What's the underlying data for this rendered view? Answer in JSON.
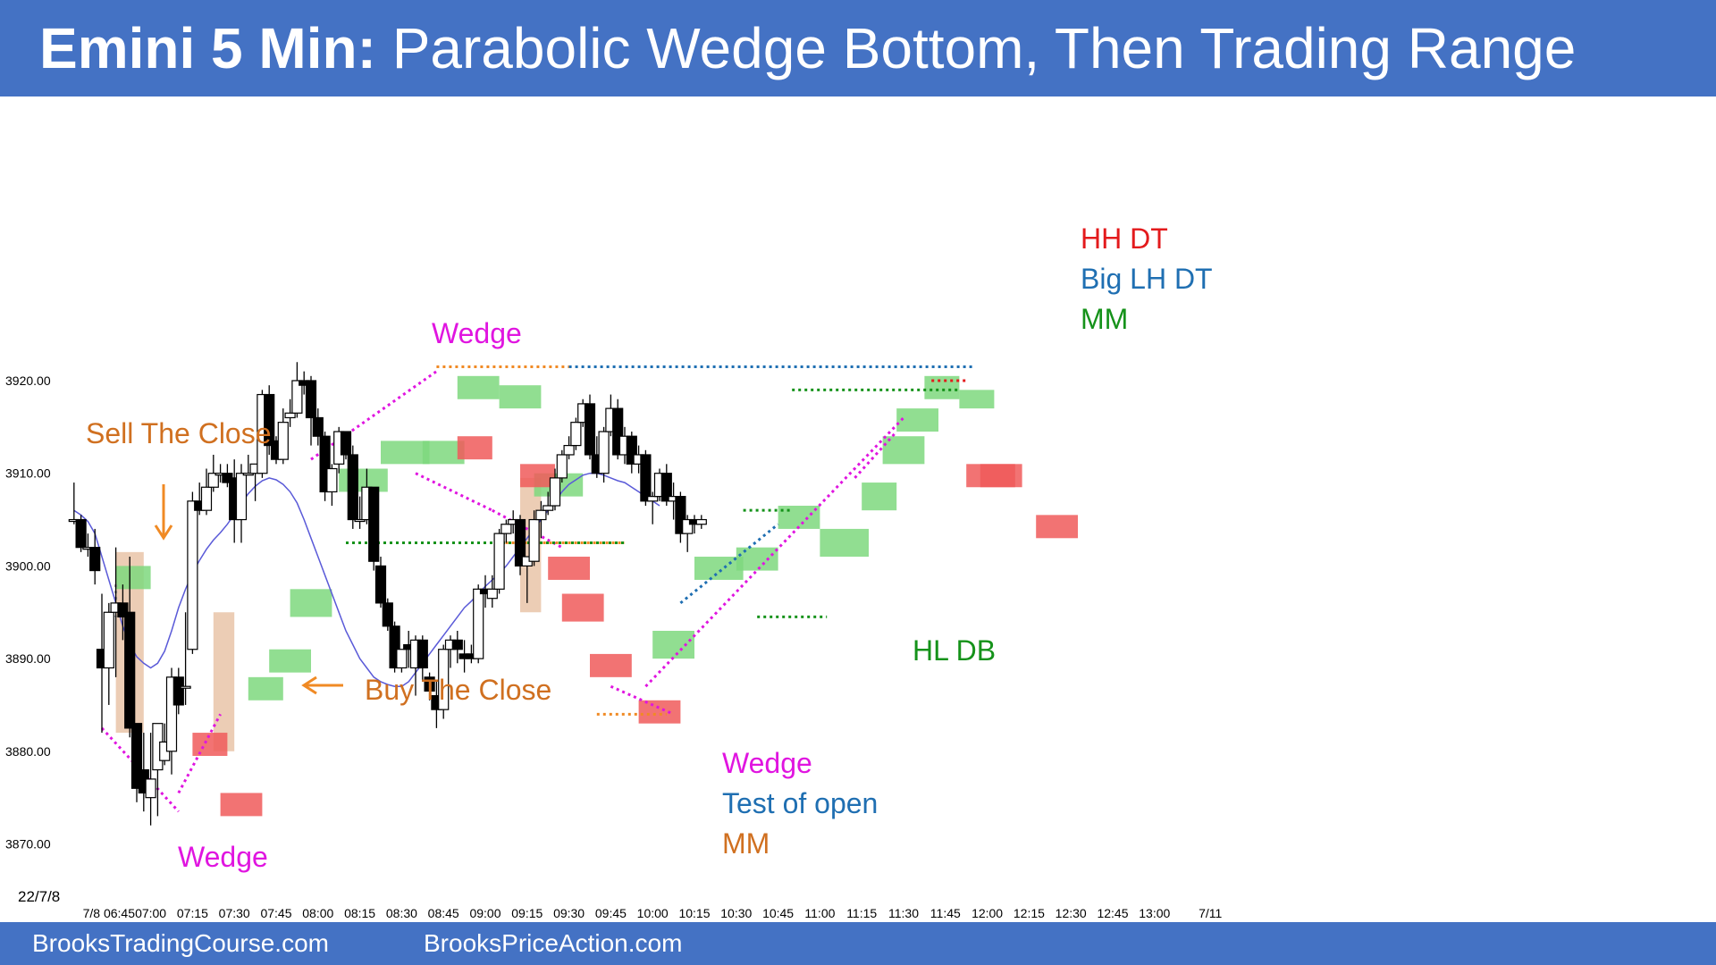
{
  "header": {
    "title_bold": "Emini 5 Min:",
    "title_rest": "Parabolic Wedge Bottom, Then Trading Range",
    "background": "#4472c4"
  },
  "footer": {
    "left": "BrooksTradingCourse.com",
    "right": "BrooksPriceAction.com",
    "background": "#4472c4"
  },
  "chart_data": {
    "type": "candlestick",
    "date_label": "22/7/8",
    "ylim": [
      3866,
      3930
    ],
    "y_ticks": [
      "3920.00",
      "3910.00",
      "3900.00",
      "3890.00",
      "3880.00",
      "3870.00"
    ],
    "y_tick_values": [
      3920,
      3910,
      3900,
      3890,
      3880,
      3870
    ],
    "x_ticks": [
      "7/8 06:45",
      "07:00",
      "07:15",
      "07:30",
      "07:45",
      "08:00",
      "08:15",
      "08:30",
      "08:45",
      "09:00",
      "09:15",
      "09:30",
      "09:45",
      "10:00",
      "10:15",
      "10:30",
      "10:45",
      "11:00",
      "11:15",
      "11:30",
      "11:45",
      "12:00",
      "12:15",
      "12:30",
      "12:45",
      "13:00",
      "7/11"
    ],
    "x_tick_bars": [
      6,
      12,
      18,
      24,
      30,
      36,
      42,
      48,
      54,
      60,
      66,
      72,
      78,
      84,
      90,
      96,
      102,
      108,
      114,
      120,
      126,
      132,
      138,
      144,
      150,
      156,
      164
    ],
    "candles": [
      [
        3905.0,
        3909.0,
        3904.5,
        3905.0
      ],
      [
        3905.0,
        3905.5,
        3901.5,
        3902.0
      ],
      [
        3902.0,
        3903.5,
        3901.0,
        3902.0
      ],
      [
        3902.0,
        3904.0,
        3898.0,
        3899.5
      ],
      [
        3891.0,
        3897.0,
        3882.0,
        3889.0
      ],
      [
        3889.0,
        3896.0,
        3885.0,
        3895.0
      ],
      [
        3895.0,
        3902.0,
        3888.0,
        3896.0
      ],
      [
        3896.0,
        3898.0,
        3892.0,
        3894.5
      ],
      [
        3895.0,
        3901.0,
        3881.5,
        3882.5
      ],
      [
        3883.0,
        3883.0,
        3874.5,
        3876.0
      ],
      [
        3878.0,
        3882.0,
        3873.5,
        3875.5
      ],
      [
        3875.0,
        3882.0,
        3872.0,
        3877.0
      ],
      [
        3878.0,
        3883.0,
        3873.0,
        3883.0
      ],
      [
        3879.0,
        3883.0,
        3878.5,
        3881.0
      ],
      [
        3880.0,
        3889.0,
        3877.5,
        3888.0
      ],
      [
        3888.0,
        3889.0,
        3884.0,
        3885.0
      ],
      [
        3887.0,
        3895.0,
        3885.0,
        3887.0
      ],
      [
        3891.0,
        3908.0,
        3890.5,
        3907.0
      ],
      [
        3907.0,
        3909.0,
        3905.5,
        3906.0
      ],
      [
        3906.0,
        3910.5,
        3905.5,
        3908.5
      ],
      [
        3908.5,
        3912.0,
        3908.0,
        3910.0
      ],
      [
        3910.0,
        3911.0,
        3909.0,
        3910.0
      ],
      [
        3910.0,
        3911.0,
        3908.5,
        3909.0
      ],
      [
        3909.5,
        3911.5,
        3902.5,
        3905.0
      ],
      [
        3905.0,
        3911.0,
        3902.5,
        3910.0
      ],
      [
        3910.0,
        3912.0,
        3910.0,
        3910.0
      ],
      [
        3910.0,
        3911.0,
        3907.0,
        3911.0
      ],
      [
        3910.0,
        3919.0,
        3909.5,
        3918.5
      ],
      [
        3918.5,
        3919.5,
        3912.0,
        3913.0
      ],
      [
        3913.5,
        3914.0,
        3911.0,
        3911.5
      ],
      [
        3911.5,
        3917.0,
        3911.0,
        3915.5
      ],
      [
        3916.0,
        3918.0,
        3915.0,
        3916.5
      ],
      [
        3916.5,
        3922.0,
        3916.0,
        3920.0
      ],
      [
        3920.0,
        3921.0,
        3918.5,
        3919.5
      ],
      [
        3920.0,
        3920.5,
        3913.0,
        3916.0
      ],
      [
        3916.0,
        3917.0,
        3913.0,
        3914.0
      ],
      [
        3914.0,
        3914.5,
        3907.0,
        3908.0
      ],
      [
        3908.0,
        3911.0,
        3906.5,
        3910.5
      ],
      [
        3911.0,
        3915.0,
        3910.0,
        3914.5
      ],
      [
        3914.5,
        3914.5,
        3911.5,
        3912.0
      ],
      [
        3912.0,
        3913.0,
        3904.0,
        3905.0
      ],
      [
        3905.0,
        3907.5,
        3904.0,
        3905.0
      ],
      [
        3905.0,
        3910.5,
        3904.5,
        3908.5
      ],
      [
        3908.5,
        3908.5,
        3899.5,
        3900.5
      ],
      [
        3900.0,
        3901.0,
        3895.5,
        3896.0
      ],
      [
        3896.0,
        3896.5,
        3893.0,
        3893.5
      ],
      [
        3893.5,
        3894.0,
        3888.5,
        3889.0
      ],
      [
        3889.0,
        3891.0,
        3888.5,
        3891.0
      ],
      [
        3891.5,
        3893.0,
        3889.0,
        3891.0
      ],
      [
        3889.0,
        3892.5,
        3886.0,
        3892.0
      ],
      [
        3892.0,
        3892.5,
        3887.5,
        3889.0
      ],
      [
        3888.0,
        3888.5,
        3885.5,
        3886.5
      ],
      [
        3886.0,
        3887.5,
        3882.5,
        3884.5
      ],
      [
        3884.5,
        3891.5,
        3883.5,
        3891.0
      ],
      [
        3891.0,
        3892.5,
        3889.0,
        3892.0
      ],
      [
        3892.0,
        3893.0,
        3889.5,
        3891.0
      ],
      [
        3890.5,
        3892.0,
        3888.5,
        3890.0
      ],
      [
        3890.5,
        3891.5,
        3889.5,
        3890.0
      ],
      [
        3890.0,
        3898.0,
        3889.5,
        3897.5
      ],
      [
        3897.5,
        3899.0,
        3895.5,
        3897.0
      ],
      [
        3896.5,
        3899.0,
        3895.5,
        3897.5
      ],
      [
        3897.5,
        3904.0,
        3897.0,
        3903.5
      ],
      [
        3903.5,
        3905.0,
        3902.5,
        3904.5
      ],
      [
        3904.5,
        3906.0,
        3903.5,
        3905.0
      ],
      [
        3905.0,
        3905.5,
        3899.0,
        3900.0
      ],
      [
        3900.0,
        3901.0,
        3896.0,
        3901.0
      ],
      [
        3900.5,
        3906.0,
        3900.0,
        3905.0
      ],
      [
        3905.0,
        3907.0,
        3903.0,
        3906.0
      ],
      [
        3906.0,
        3908.0,
        3905.5,
        3906.5
      ],
      [
        3906.5,
        3910.5,
        3906.0,
        3909.5
      ],
      [
        3909.5,
        3912.5,
        3909.0,
        3912.0
      ],
      [
        3912.0,
        3914.0,
        3911.5,
        3913.0
      ],
      [
        3913.0,
        3916.0,
        3912.5,
        3915.5
      ],
      [
        3915.5,
        3918.0,
        3915.0,
        3917.5
      ],
      [
        3917.5,
        3918.5,
        3911.5,
        3912.0
      ],
      [
        3912.0,
        3914.0,
        3909.5,
        3910.0
      ],
      [
        3910.0,
        3915.0,
        3909.0,
        3914.5
      ],
      [
        3914.5,
        3918.5,
        3914.0,
        3917.0
      ],
      [
        3917.0,
        3918.0,
        3911.5,
        3912.0
      ],
      [
        3912.0,
        3915.0,
        3911.0,
        3914.0
      ],
      [
        3914.0,
        3914.5,
        3910.0,
        3911.0
      ],
      [
        3911.0,
        3913.0,
        3910.0,
        3912.0
      ],
      [
        3912.0,
        3912.5,
        3906.5,
        3907.0
      ],
      [
        3907.0,
        3908.0,
        3904.5,
        3907.5
      ],
      [
        3907.5,
        3910.5,
        3907.0,
        3910.0
      ],
      [
        3910.0,
        3911.0,
        3906.5,
        3907.0
      ],
      [
        3907.0,
        3909.0,
        3905.0,
        3907.5
      ],
      [
        3907.5,
        3908.0,
        3902.5,
        3903.5
      ],
      [
        3903.5,
        3905.5,
        3901.5,
        3905.0
      ],
      [
        3905.0,
        3905.5,
        3903.5,
        3904.5
      ],
      [
        3904.5,
        3905.5,
        3904.0,
        3905.0
      ]
    ],
    "ema": [
      3906.0,
      3905.5,
      3904.8,
      3903.5,
      3901.0,
      3898.5,
      3896.0,
      3893.5,
      3891.5,
      3890.2,
      3889.5,
      3889.0,
      3889.5,
      3890.8,
      3893.0,
      3895.5,
      3897.5,
      3899.2,
      3900.6,
      3901.8,
      3902.8,
      3903.6,
      3904.5,
      3905.6,
      3906.8,
      3907.8,
      3908.6,
      3909.2,
      3909.5,
      3909.3,
      3908.8,
      3908.0,
      3906.8,
      3905.0,
      3903.0,
      3901.0,
      3899.0,
      3897.0,
      3895.0,
      3893.0,
      3891.5,
      3890.0,
      3889.0,
      3888.0,
      3887.5,
      3887.2,
      3887.0,
      3887.0,
      3887.5,
      3888.5,
      3889.5,
      3890.5,
      3891.5,
      3892.5,
      3893.5,
      3894.5,
      3895.5,
      3896.2,
      3897.0,
      3897.8,
      3898.5,
      3899.2,
      3900.0,
      3901.0,
      3902.0,
      3903.0,
      3904.0,
      3905.0,
      3906.0,
      3907.0,
      3908.0,
      3908.8,
      3909.3,
      3909.8,
      3910.0,
      3910.0,
      3909.8,
      3909.5,
      3909.2,
      3909.0,
      3908.5,
      3908.0,
      3907.5,
      3907.0,
      3906.5
    ],
    "annotations": [
      {
        "text": "HH DT",
        "color": "#e31a1c"
      },
      {
        "text": "Big LH DT",
        "color": "#1f6fb2"
      },
      {
        "text": "MM",
        "color": "#15921a"
      },
      {
        "text": "Wedge",
        "color": "#e015e0"
      },
      {
        "text": "Sell The Close",
        "color": "#d07020"
      },
      {
        "text": "Buy The Close",
        "color": "#d07020"
      },
      {
        "text": "HL DB",
        "color": "#15921a"
      },
      {
        "text": "Wedge",
        "color": "#e015e0"
      },
      {
        "text": "Test of open",
        "color": "#1f6fb2"
      },
      {
        "text": "MM",
        "color": "#d07020"
      },
      {
        "text": "Wedge",
        "color": "#e015e0"
      }
    ],
    "colors": {
      "bull_highlight": "#7ed87e",
      "bear_highlight": "#f05a5a",
      "climax_highlight": "#e9c4a8",
      "ema_line": "#5a5ad8"
    }
  }
}
